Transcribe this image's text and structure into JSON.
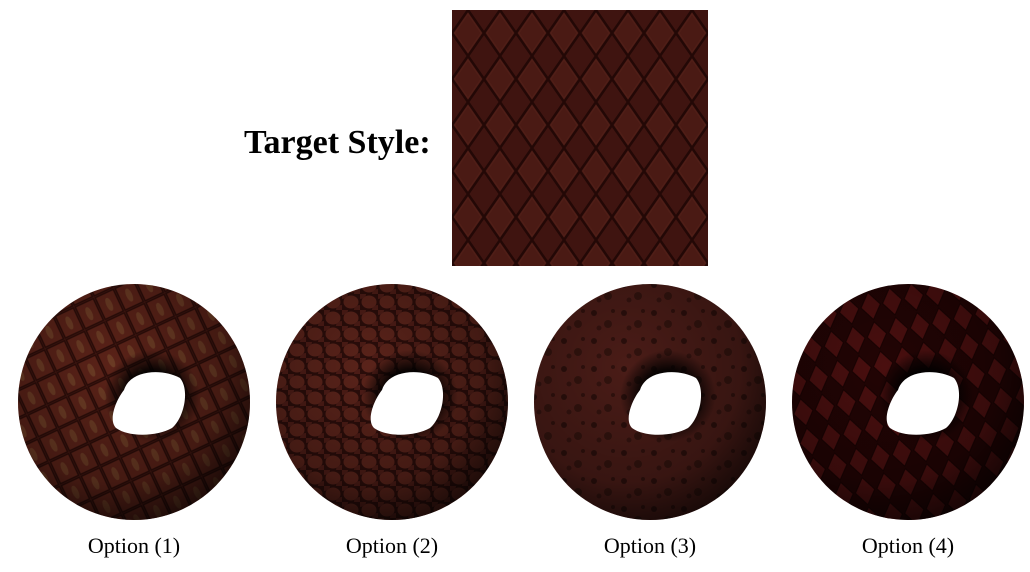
{
  "target": {
    "label": "Target Style:",
    "base_color": "#3f1410",
    "line_color": "#260907"
  },
  "options": [
    {
      "caption": "Option (1)",
      "base": "#4a1a14",
      "accent": "#8a6a3a",
      "pattern": "stripes"
    },
    {
      "caption": "Option (2)",
      "base": "#4d1c16",
      "accent": "#2b0d0a",
      "pattern": "cells"
    },
    {
      "caption": "Option (3)",
      "base": "#4a1c17",
      "accent": "#1e0a07",
      "pattern": "spots"
    },
    {
      "caption": "Option (4)",
      "base": "#3e0c0c",
      "accent": "#220404",
      "pattern": "diamond"
    }
  ]
}
